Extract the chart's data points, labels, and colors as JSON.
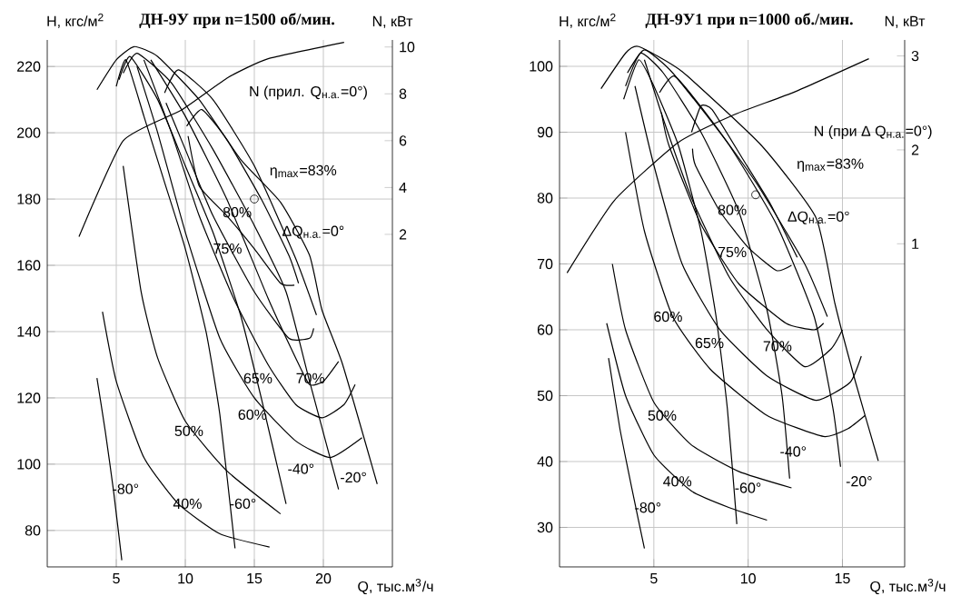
{
  "chart_data": [
    {
      "type": "line",
      "title": "ДН-9У при n=1500 об/мин.",
      "xlabel": "Q, тыс.м$^{3}$/ч",
      "ylabel": "H, кгс/м$^{2}$",
      "y2label": "N, кВт",
      "xlim": [
        0,
        25
      ],
      "ylim": [
        69,
        228
      ],
      "y2lim": [
        -12.2,
        10.3
      ],
      "xticks": [
        5,
        10,
        15,
        20
      ],
      "yticks": [
        80,
        100,
        120,
        140,
        160,
        180,
        200,
        220
      ],
      "y2ticks": [
        2,
        4,
        6,
        8,
        10
      ],
      "grid": true,
      "series": [
        {
          "color": "#000000",
          "x": [
            3.6,
            5,
            6.3,
            8,
            11,
            14,
            16.9,
            19,
            19.9,
            21.4,
            23.9
          ],
          "values": [
            213,
            222,
            226,
            223,
            210,
            192,
            179,
            163,
            146.5,
            130,
            94
          ]
        },
        {
          "color": "#000000",
          "x": [
            5.5,
            6.5,
            9,
            12,
            15,
            17.3,
            19,
            21.1
          ],
          "values": [
            218,
            224,
            215,
            195,
            172,
            152,
            125,
            92.4
          ]
        },
        {
          "color": "#000000",
          "x": [
            5.2,
            6,
            8,
            10,
            12,
            14,
            15.5,
            17.3
          ],
          "values": [
            216,
            223,
            210,
            190,
            170,
            145,
            120,
            88
          ]
        },
        {
          "color": "#000000",
          "x": [
            5,
            5.7,
            7,
            8.5,
            10,
            11.5,
            12.5,
            13.6
          ],
          "values": [
            214,
            222,
            205,
            185,
            165,
            140,
            115,
            74.6
          ]
        },
        {
          "color": "#000000",
          "x": [
            3.6,
            4.2,
            4.8,
            5.4
          ],
          "values": [
            126,
            110,
            92,
            71
          ]
        },
        {
          "color": "#000000",
          "x": [
            10.1,
            11.2,
            13,
            15.5,
            17.5,
            18.2
          ],
          "values": [
            202,
            207,
            198,
            180,
            163,
            154.6
          ]
        },
        {
          "color": "#000000",
          "x": [
            10.2,
            11,
            13,
            15,
            16.9,
            17.9
          ],
          "values": [
            199,
            184,
            175,
            165,
            154.6,
            154
          ]
        },
        {
          "color": "#000000",
          "x": [
            8.5,
            9.5,
            12,
            15,
            18,
            19.5
          ],
          "values": [
            212,
            219,
            210,
            190,
            162,
            145
          ]
        },
        {
          "color": "#000000",
          "x": [
            8.6,
            10,
            12,
            15,
            17.5,
            19,
            19.3
          ],
          "values": [
            209,
            195,
            175,
            152,
            138,
            138,
            141
          ]
        },
        {
          "color": "#000000",
          "x": [
            7.5,
            10,
            13,
            16,
            18,
            19,
            20,
            21.1
          ],
          "values": [
            222,
            205,
            180,
            150,
            132,
            124,
            125,
            131
          ]
        },
        {
          "color": "#000000",
          "x": [
            7,
            9,
            11,
            13.5,
            16,
            18,
            19.9,
            21.5,
            22.3
          ],
          "values": [
            222,
            200,
            175,
            150,
            130,
            118,
            114,
            118,
            124
          ]
        },
        {
          "color": "#000000",
          "x": [
            6.5,
            8,
            10,
            12.5,
            15,
            18,
            20.5,
            22.8
          ],
          "values": [
            220,
            200,
            170,
            138,
            120,
            107,
            102,
            108
          ]
        },
        {
          "color": "#000000",
          "x": [
            5.5,
            6.8,
            8,
            10,
            13,
            16.9
          ],
          "values": [
            190,
            152,
            132,
            113,
            98,
            85
          ]
        },
        {
          "color": "#000000",
          "x": [
            4,
            5,
            7,
            9.5,
            12.5,
            16.1
          ],
          "values": [
            146,
            125,
            102,
            88,
            79,
            75
          ]
        },
        {
          "color": "#000000",
          "axis": "y2",
          "x": [
            2.3,
            5.5,
            9.7,
            13.1,
            16,
            21.5
          ],
          "values": [
            1.9,
            6.0,
            7.3,
            8.7,
            9.5,
            10.2
          ]
        },
        {
          "type": "scatter",
          "marker": "circle",
          "color": "#000000",
          "x": [
            15.0
          ],
          "values": [
            180
          ]
        }
      ],
      "annotations": [
        "N (прил. Q$_{н.а.}$=0°)",
        "η$_{max}$=83%",
        "ΔQ$_{н.а.}$=0°",
        "80%",
        "75%",
        "70%",
        "65%",
        "60%",
        "50%",
        "40%",
        "-80°",
        "-60°",
        "-40°",
        "-20°"
      ]
    },
    {
      "type": "line",
      "title": "ДН-9У1 при n=1000 об./мин.",
      "xlabel": "Q, тыс.м$^{3}$/ч",
      "ylabel": "H, кгс/м$^{2}$",
      "y2label": "N, кВт",
      "xlim": [
        0,
        18.3
      ],
      "ylim": [
        24,
        104
      ],
      "y2lim": [
        -2.44,
        3.17
      ],
      "xticks": [
        5,
        10,
        15
      ],
      "yticks": [
        30,
        40,
        50,
        60,
        70,
        80,
        90,
        100
      ],
      "y2ticks": [
        1,
        2,
        3
      ],
      "grid": true,
      "series": [
        {
          "color": "#000000",
          "x": [
            2.2,
            3.5,
            4.2,
            6.5,
            10.7,
            13.6,
            14.6,
            15.7,
            16.9
          ],
          "values": [
            96.6,
            102,
            103,
            99.2,
            88,
            77,
            64,
            52,
            40.1
          ]
        },
        {
          "color": "#000000",
          "x": [
            3.6,
            4.5,
            6,
            9,
            11.5,
            13.5,
            14.5,
            14.9
          ],
          "values": [
            99,
            102.5,
            99,
            88,
            76,
            62,
            48,
            39.2
          ]
        },
        {
          "color": "#000000",
          "x": [
            3.5,
            4.3,
            5.5,
            7.5,
            9.5,
            11,
            11.8,
            12.2
          ],
          "values": [
            97,
            102,
            99,
            90,
            78,
            63,
            50,
            37.4
          ]
        },
        {
          "color": "#000000",
          "x": [
            3.4,
            4.2,
            5,
            6.3,
            7.5,
            8.3,
            8.9,
            9.4
          ],
          "values": [
            95,
            101,
            97,
            88,
            75,
            62,
            48,
            30.5
          ]
        },
        {
          "color": "#000000",
          "x": [
            2.6,
            3.2,
            3.9,
            4.5
          ],
          "values": [
            55.7,
            45,
            35,
            26.8
          ]
        },
        {
          "color": "#000000",
          "x": [
            7,
            7.5,
            8.1,
            9.7,
            11.2,
            12.6
          ],
          "values": [
            90,
            94,
            93.4,
            86,
            79,
            71
          ]
        },
        {
          "color": "#000000",
          "x": [
            7.05,
            7.2,
            8.5,
            10,
            11.5,
            12.3
          ],
          "values": [
            87.5,
            85,
            78,
            72.5,
            69,
            69.8
          ]
        },
        {
          "color": "#000000",
          "x": [
            5.3,
            6.1,
            8,
            10.5,
            13,
            14.2
          ],
          "values": [
            96,
            98.5,
            92,
            82,
            70,
            62
          ]
        },
        {
          "color": "#000000",
          "x": [
            5.4,
            5.8,
            7.5,
            9.5,
            12,
            13.5,
            14
          ],
          "values": [
            93,
            88,
            76,
            67,
            61,
            60,
            61
          ]
        },
        {
          "color": "#000000",
          "x": [
            4.5,
            5.5,
            7,
            9,
            11,
            13,
            14.4,
            15
          ],
          "values": [
            101,
            92,
            80,
            68,
            60,
            54.4,
            57.1,
            60
          ]
        },
        {
          "color": "#000000",
          "x": [
            4,
            5,
            6.5,
            8.5,
            11,
            13.6,
            15.4,
            16
          ],
          "values": [
            97,
            85,
            70,
            60,
            53,
            49.3,
            52,
            56
          ]
        },
        {
          "color": "#000000",
          "x": [
            3.5,
            4.5,
            6,
            8,
            11,
            14,
            15.3,
            16.2
          ],
          "values": [
            90,
            75,
            62,
            54,
            47,
            43.8,
            45,
            47
          ]
        },
        {
          "color": "#000000",
          "x": [
            2.8,
            3.5,
            5,
            7,
            9.5,
            12.3
          ],
          "values": [
            70,
            60,
            49,
            42.5,
            38.5,
            36
          ]
        },
        {
          "color": "#000000",
          "x": [
            2.5,
            3.5,
            5,
            7,
            9,
            11
          ],
          "values": [
            61,
            50,
            41,
            35.5,
            33,
            31.1
          ]
        },
        {
          "color": "#000000",
          "axis": "y2",
          "x": [
            0.4,
            2.9,
            6.3,
            9.2,
            12.5,
            16.4
          ],
          "values": [
            0.69,
            1.46,
            2.08,
            2.37,
            2.62,
            2.97
          ]
        },
        {
          "type": "scatter",
          "marker": "circle",
          "color": "#000000",
          "x": [
            10.4
          ],
          "values": [
            80.5
          ]
        }
      ],
      "annotations": [
        "N (при Δ Q$_{н.а.}$=0°)",
        "η$_{max}$=83%",
        "ΔQ$_{н.а.}$=0°",
        "80%",
        "75%",
        "70%",
        "65%",
        "60%",
        "50%",
        "40%",
        "-80°",
        "-60°",
        "-40°",
        "-20°"
      ]
    }
  ]
}
